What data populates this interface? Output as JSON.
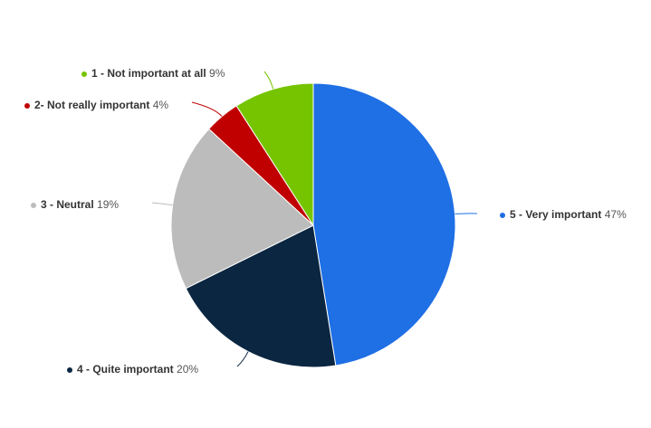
{
  "chart_data": {
    "type": "pie",
    "categories": [
      "5 - Very important",
      "4 - Quite important",
      "3 - Neutral",
      "2- Not really important",
      "1 - Not important at all"
    ],
    "values": [
      47,
      20,
      19,
      4,
      9
    ],
    "value_labels": [
      "47%",
      "20%",
      "19%",
      "4%",
      "9%"
    ],
    "colors": [
      "#1f6fe5",
      "#0b2641",
      "#bcbcbc",
      "#c00000",
      "#76c400"
    ]
  }
}
